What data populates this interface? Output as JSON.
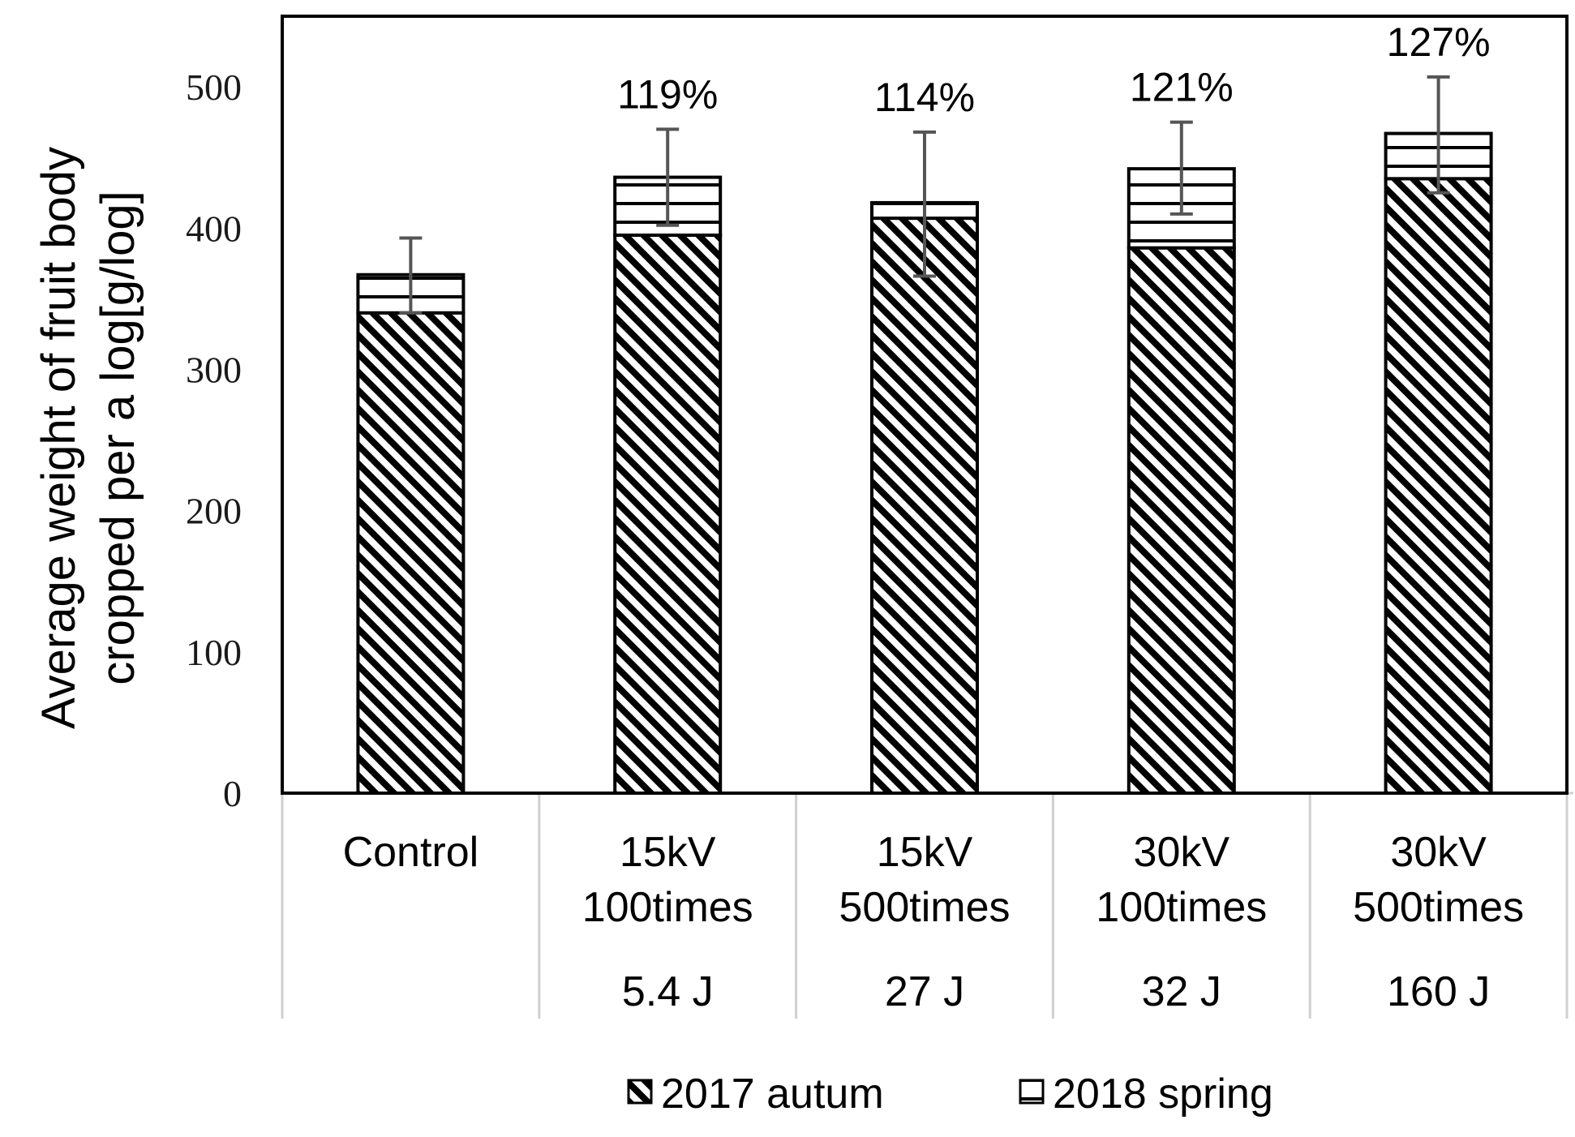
{
  "chart_data": {
    "type": "bar",
    "stacked": true,
    "ylabel_lines": [
      "Average weight of fruit body",
      "cropped per a log[g/log]"
    ],
    "ylim": [
      0,
      550
    ],
    "yticks": [
      0,
      100,
      200,
      300,
      400,
      500
    ],
    "categories": [
      {
        "lines": [
          "Control"
        ],
        "energy": ""
      },
      {
        "lines": [
          "15kV",
          "100times"
        ],
        "energy": "5.4 J"
      },
      {
        "lines": [
          "15kV",
          "500times"
        ],
        "energy": "27 J"
      },
      {
        "lines": [
          "30kV",
          "100times"
        ],
        "energy": "32 J"
      },
      {
        "lines": [
          "30kV",
          "500times"
        ],
        "energy": "160 J"
      }
    ],
    "series": [
      {
        "name": "2017 autum",
        "pattern": "diagonal",
        "values": [
          340,
          395,
          407,
          386,
          435
        ]
      },
      {
        "name": "2018 spring",
        "pattern": "horizontal",
        "values": [
          27,
          41,
          11,
          56,
          32
        ]
      }
    ],
    "error_bars": [
      {
        "low": 340,
        "high": 393
      },
      {
        "low": 402,
        "high": 470
      },
      {
        "low": 366,
        "high": 468
      },
      {
        "low": 410,
        "high": 475
      },
      {
        "low": 425,
        "high": 507
      }
    ],
    "annotations": [
      "",
      "119%",
      "114%",
      "121%",
      "127%"
    ],
    "legend_position": "bottom",
    "grid": false,
    "colors": {
      "bar_stroke": "#000000",
      "error_bar": "#555555",
      "table_lines": "#d0d0d0"
    }
  }
}
